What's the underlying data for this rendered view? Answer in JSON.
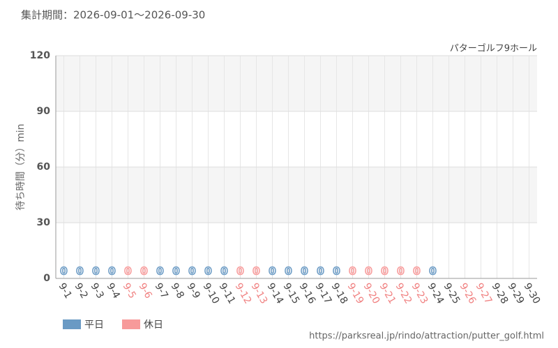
{
  "chart_data": {
    "type": "bar",
    "title": "集計期間：2026-09-01～2026-09-30",
    "subtitle": "パターゴルフ9ホール",
    "y_label": "待ち時間（分）min",
    "source": "https://parksreal.jp/rindo/attraction/putter_golf.html",
    "categories": [
      "9-1",
      "9-2",
      "9-3",
      "9-4",
      "9-5",
      "9-6",
      "9-7",
      "9-8",
      "9-9",
      "9-10",
      "9-11",
      "9-12",
      "9-13",
      "9-14",
      "9-15",
      "9-16",
      "9-17",
      "9-18",
      "9-19",
      "9-20",
      "9-21",
      "9-22",
      "9-23",
      "9-24",
      "9-25",
      "9-26",
      "9-27",
      "9-28",
      "9-29",
      "9-30"
    ],
    "label_colors": [
      "#444",
      "#444",
      "#444",
      "#444",
      "#f08080",
      "#f08080",
      "#444",
      "#444",
      "#444",
      "#444",
      "#444",
      "#f08080",
      "#f08080",
      "#444",
      "#444",
      "#444",
      "#444",
      "#444",
      "#f08080",
      "#f08080",
      "#f08080",
      "#f08080",
      "#f08080",
      "#444",
      "#444",
      "#f08080",
      "#f08080",
      "#444",
      "#444",
      "#444"
    ],
    "series": [
      {
        "name": "平日",
        "color": "#6a9ac4",
        "values": [
          0,
          0,
          0,
          0,
          null,
          null,
          0,
          0,
          0,
          0,
          0,
          null,
          null,
          0,
          0,
          0,
          0,
          0,
          null,
          null,
          null,
          null,
          null,
          0,
          null,
          null,
          null,
          null,
          null,
          null
        ]
      },
      {
        "name": "休日",
        "color": "#f79a9a",
        "values": [
          null,
          null,
          null,
          null,
          0,
          0,
          null,
          null,
          null,
          null,
          null,
          0,
          0,
          null,
          null,
          null,
          null,
          null,
          0,
          0,
          0,
          0,
          0,
          null,
          null,
          null,
          null,
          null,
          null,
          null
        ]
      }
    ],
    "ylim": [
      0,
      120
    ],
    "yticks": [
      0,
      30,
      60,
      90,
      120
    ],
    "grid": true
  }
}
